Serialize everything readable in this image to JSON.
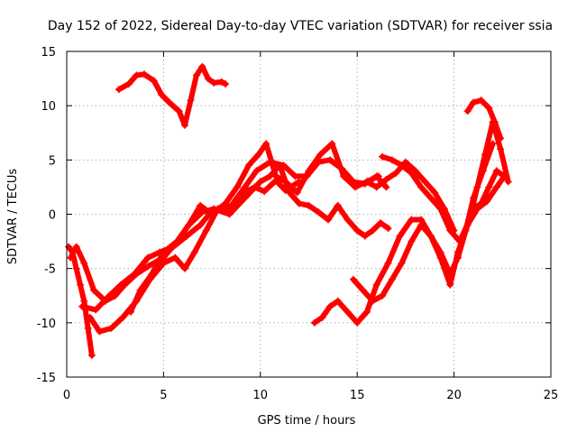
{
  "chart_data": {
    "type": "line",
    "title": "Day 152 of 2022, Sidereal Day-to-day VTEC variation (SDTVAR) for receiver ssia",
    "xlabel": "GPS time / hours",
    "ylabel": "SDTVAR / TECUs",
    "xlim": [
      0,
      25
    ],
    "ylim": [
      -15,
      15
    ],
    "xticks": [
      0,
      5,
      10,
      15,
      20,
      25
    ],
    "yticks": [
      -15,
      -10,
      -5,
      0,
      5,
      10,
      15
    ],
    "grid": true,
    "marker": "+",
    "series_color": "#ff0000",
    "series": [
      {
        "x": [
          2.7,
          3.2,
          3.6,
          4.0,
          4.5,
          4.9,
          5.3,
          5.8,
          6.1,
          6.4,
          6.7,
          7.0,
          7.3,
          7.6,
          8.0,
          8.2
        ],
        "y": [
          11.5,
          12.0,
          12.8,
          12.9,
          12.3,
          11.0,
          10.3,
          9.5,
          8.2,
          10.5,
          12.8,
          13.6,
          12.5,
          12.1,
          12.2,
          12.0
        ]
      },
      {
        "x": [
          0.1,
          0.3,
          0.5,
          0.7,
          0.9,
          1.1,
          1.3
        ],
        "y": [
          -3.0,
          -3.5,
          -5.0,
          -6.5,
          -8.0,
          -10.5,
          -13.0
        ]
      },
      {
        "x": [
          0.2,
          0.5,
          0.9,
          1.4,
          2.0,
          2.5,
          3.0,
          3.6,
          4.2,
          5.0,
          5.7,
          6.3,
          7.0,
          7.6,
          8.3,
          9.0,
          9.7,
          10.2,
          10.8,
          11.3,
          12.0
        ],
        "y": [
          -4.0,
          -3.0,
          -4.5,
          -7.0,
          -8.0,
          -7.5,
          -6.5,
          -5.5,
          -4.8,
          -4.0,
          -2.5,
          -1.0,
          0.2,
          0.5,
          0.3,
          1.8,
          2.5,
          2.1,
          3.1,
          2.2,
          3.0
        ]
      },
      {
        "x": [
          0.8,
          1.5,
          2.2,
          2.8,
          3.5,
          4.2,
          4.8,
          5.5,
          6.2,
          6.9,
          7.6,
          8.4,
          9.2,
          10.0,
          10.5,
          11.0,
          11.5,
          12.0,
          12.5,
          13.0,
          13.5,
          14.0,
          14.5,
          15.0,
          15.4,
          15.8,
          16.2,
          16.6
        ],
        "y": [
          -8.5,
          -8.8,
          -7.5,
          -6.5,
          -5.5,
          -4.0,
          -3.5,
          -3.0,
          -2.0,
          -1.0,
          0.5,
          0.0,
          1.5,
          3.0,
          3.5,
          4.5,
          2.0,
          1.0,
          0.8,
          0.2,
          -0.5,
          0.8,
          -0.5,
          -1.5,
          -2.0,
          -1.5,
          -0.8,
          -1.3
        ]
      },
      {
        "x": [
          1.2,
          1.7,
          2.3,
          2.9,
          3.6,
          4.3,
          5.0,
          5.6,
          6.1,
          6.6,
          7.2,
          7.8,
          8.5,
          9.2,
          9.8,
          10.5,
          11.2,
          11.8,
          12.4,
          13.0,
          13.6,
          14.2,
          14.8,
          15.4,
          16.0,
          16.5
        ],
        "y": [
          -9.5,
          -10.8,
          -10.5,
          -9.5,
          -8.0,
          -6.0,
          -4.5,
          -4.0,
          -5.0,
          -3.5,
          -1.5,
          0.5,
          0.8,
          2.5,
          4.0,
          4.8,
          4.5,
          3.5,
          3.5,
          4.8,
          5.0,
          4.2,
          3.0,
          2.8,
          3.5,
          2.5
        ]
      },
      {
        "x": [
          3.3,
          3.8,
          4.4,
          5.0,
          5.7,
          6.3,
          6.9,
          7.5,
          8.2,
          8.8,
          9.4,
          9.9,
          10.3,
          10.8,
          11.3,
          11.9,
          12.5,
          13.1,
          13.7,
          14.3,
          14.9,
          15.5,
          16.1
        ],
        "y": [
          -9.0,
          -7.0,
          -5.5,
          -3.5,
          -2.5,
          -1.0,
          0.8,
          0.0,
          1.0,
          2.5,
          4.5,
          5.5,
          6.5,
          3.5,
          3.0,
          2.0,
          4.0,
          5.5,
          6.5,
          3.5,
          2.5,
          3.0,
          3.5
        ]
      },
      {
        "x": [
          12.8,
          13.2,
          13.6,
          14.0,
          14.5,
          15.0,
          15.5,
          16.0,
          16.6,
          17.2,
          17.8,
          18.3,
          18.8,
          19.3,
          19.8,
          20.2,
          20.7,
          21.2,
          21.7,
          22.2,
          22.6
        ],
        "y": [
          -10.0,
          -9.5,
          -8.5,
          -8.0,
          -9.0,
          -10.0,
          -9.0,
          -6.5,
          -4.5,
          -2.0,
          -0.5,
          -0.5,
          -2.0,
          -4.0,
          -6.5,
          -3.5,
          -1.0,
          0.5,
          1.2,
          2.5,
          3.5
        ]
      },
      {
        "x": [
          14.8,
          15.3,
          15.8,
          16.3,
          16.8,
          17.3,
          17.8,
          18.3,
          18.8,
          19.3,
          19.8,
          20.2,
          20.6,
          21.0,
          21.4,
          21.8,
          22.2,
          22.6
        ],
        "y": [
          -6.0,
          -7.0,
          -8.0,
          -7.5,
          -6.0,
          -4.5,
          -2.5,
          -1.0,
          -2.0,
          -3.5,
          -5.5,
          -4.0,
          -1.5,
          0.5,
          1.0,
          2.5,
          4.0,
          3.5
        ]
      },
      {
        "x": [
          16.3,
          16.8,
          17.3,
          17.8,
          18.3,
          18.8,
          19.3,
          19.8,
          20.3,
          20.8,
          21.2,
          21.6,
          22.0,
          22.4,
          22.8
        ],
        "y": [
          5.3,
          5.0,
          4.5,
          3.8,
          2.5,
          1.5,
          0.5,
          -1.5,
          -2.5,
          -0.5,
          2.5,
          5.5,
          8.5,
          6.0,
          3.0
        ]
      },
      {
        "x": [
          15.5,
          16.0,
          16.5,
          17.0,
          17.5,
          18.0,
          18.5,
          19.0,
          19.5,
          20.0
        ],
        "y": [
          3.0,
          2.5,
          3.2,
          3.8,
          4.8,
          4.0,
          3.0,
          2.0,
          0.5,
          -1.5
        ]
      },
      {
        "x": [
          20.7,
          21.0,
          21.4,
          21.8,
          22.1,
          22.4
        ],
        "y": [
          9.5,
          10.3,
          10.5,
          9.8,
          8.5,
          7.0
        ]
      },
      {
        "x": [
          20.2,
          20.6,
          21.0,
          21.5,
          22.0
        ],
        "y": [
          -4.0,
          -1.5,
          1.5,
          4.0,
          6.5
        ]
      }
    ]
  }
}
